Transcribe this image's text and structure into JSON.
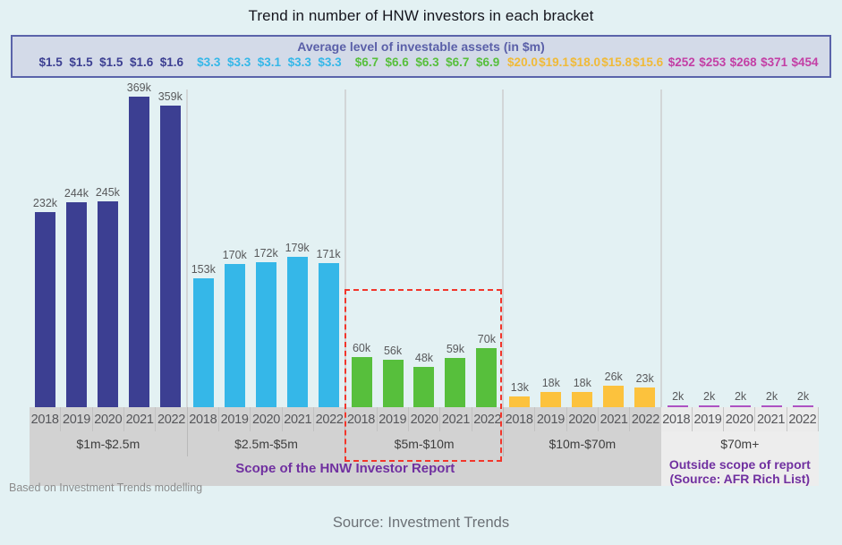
{
  "page": {
    "title": "Trend in number of HNW investors in each bracket",
    "footnote": "Based on Investment Trends modelling",
    "source": "Source: Investment Trends"
  },
  "assets_box": {
    "header": "Average level of investable assets (in $m)"
  },
  "scope": {
    "in_scope": "Scope of the HNW Investor Report",
    "out_scope_line1": "Outside scope of report",
    "out_scope_line2": "(Source: AFR Rich List)"
  },
  "chart_data": {
    "type": "bar",
    "title": "Trend in number of HNW investors in each bracket",
    "unit": "number of HNW investors (thousands)",
    "years": [
      "2018",
      "2019",
      "2020",
      "2021",
      "2022"
    ],
    "bar_label_suffix": "k",
    "y_axis": "hidden — values labeled above each bar",
    "ylim_k": [
      0,
      378
    ],
    "highlight_box": "red dashed outline around the $5m-$10m bracket group",
    "series": [
      {
        "bracket": "$1m-$2.5m",
        "in_scope": true,
        "bar_color": "#3c3f92",
        "value_color": "#3c3f92",
        "investors_k": [
          232,
          244,
          245,
          369,
          359
        ],
        "avg_assets_m": [
          "$1.5",
          "$1.5",
          "$1.5",
          "$1.6",
          "$1.6"
        ]
      },
      {
        "bracket": "$2.5m-$5m",
        "in_scope": true,
        "bar_color": "#35b7e8",
        "value_color": "#35b7e8",
        "investors_k": [
          153,
          170,
          172,
          179,
          171
        ],
        "avg_assets_m": [
          "$3.3",
          "$3.3",
          "$3.1",
          "$3.3",
          "$3.3"
        ]
      },
      {
        "bracket": "$5m-$10m",
        "in_scope": true,
        "highlighted": true,
        "bar_color": "#57bf3c",
        "value_color": "#57bf3c",
        "investors_k": [
          60,
          56,
          48,
          59,
          70
        ],
        "avg_assets_m": [
          "$6.7",
          "$6.6",
          "$6.3",
          "$6.7",
          "$6.9"
        ]
      },
      {
        "bracket": "$10m-$70m",
        "in_scope": true,
        "bar_color": "#fcc23d",
        "value_color": "#f0ba38",
        "investors_k": [
          13,
          18,
          18,
          26,
          23
        ],
        "avg_assets_m": [
          "$20.0",
          "$19.1",
          "$18.0",
          "$15.8",
          "$15.6"
        ]
      },
      {
        "bracket": "$70m+",
        "in_scope": false,
        "bar_color": "#ad53c3",
        "value_color": "#c33fa5",
        "investors_k": [
          2,
          2,
          2,
          2,
          2
        ],
        "avg_assets_m": [
          "$252",
          "$253",
          "$268",
          "$371",
          "$454"
        ]
      }
    ]
  },
  "colors": {
    "background": "#e3f1f3",
    "assets_box_bg": "#d3dae8",
    "assets_box_border": "#5a63aa",
    "assets_header_text": "#5a5fa8",
    "scope_text": "#7030a0",
    "highlight_border": "#f2362b",
    "strip_in_scope_bg": "#d2d2d2",
    "strip_out_scope_bg": "#ededed"
  }
}
